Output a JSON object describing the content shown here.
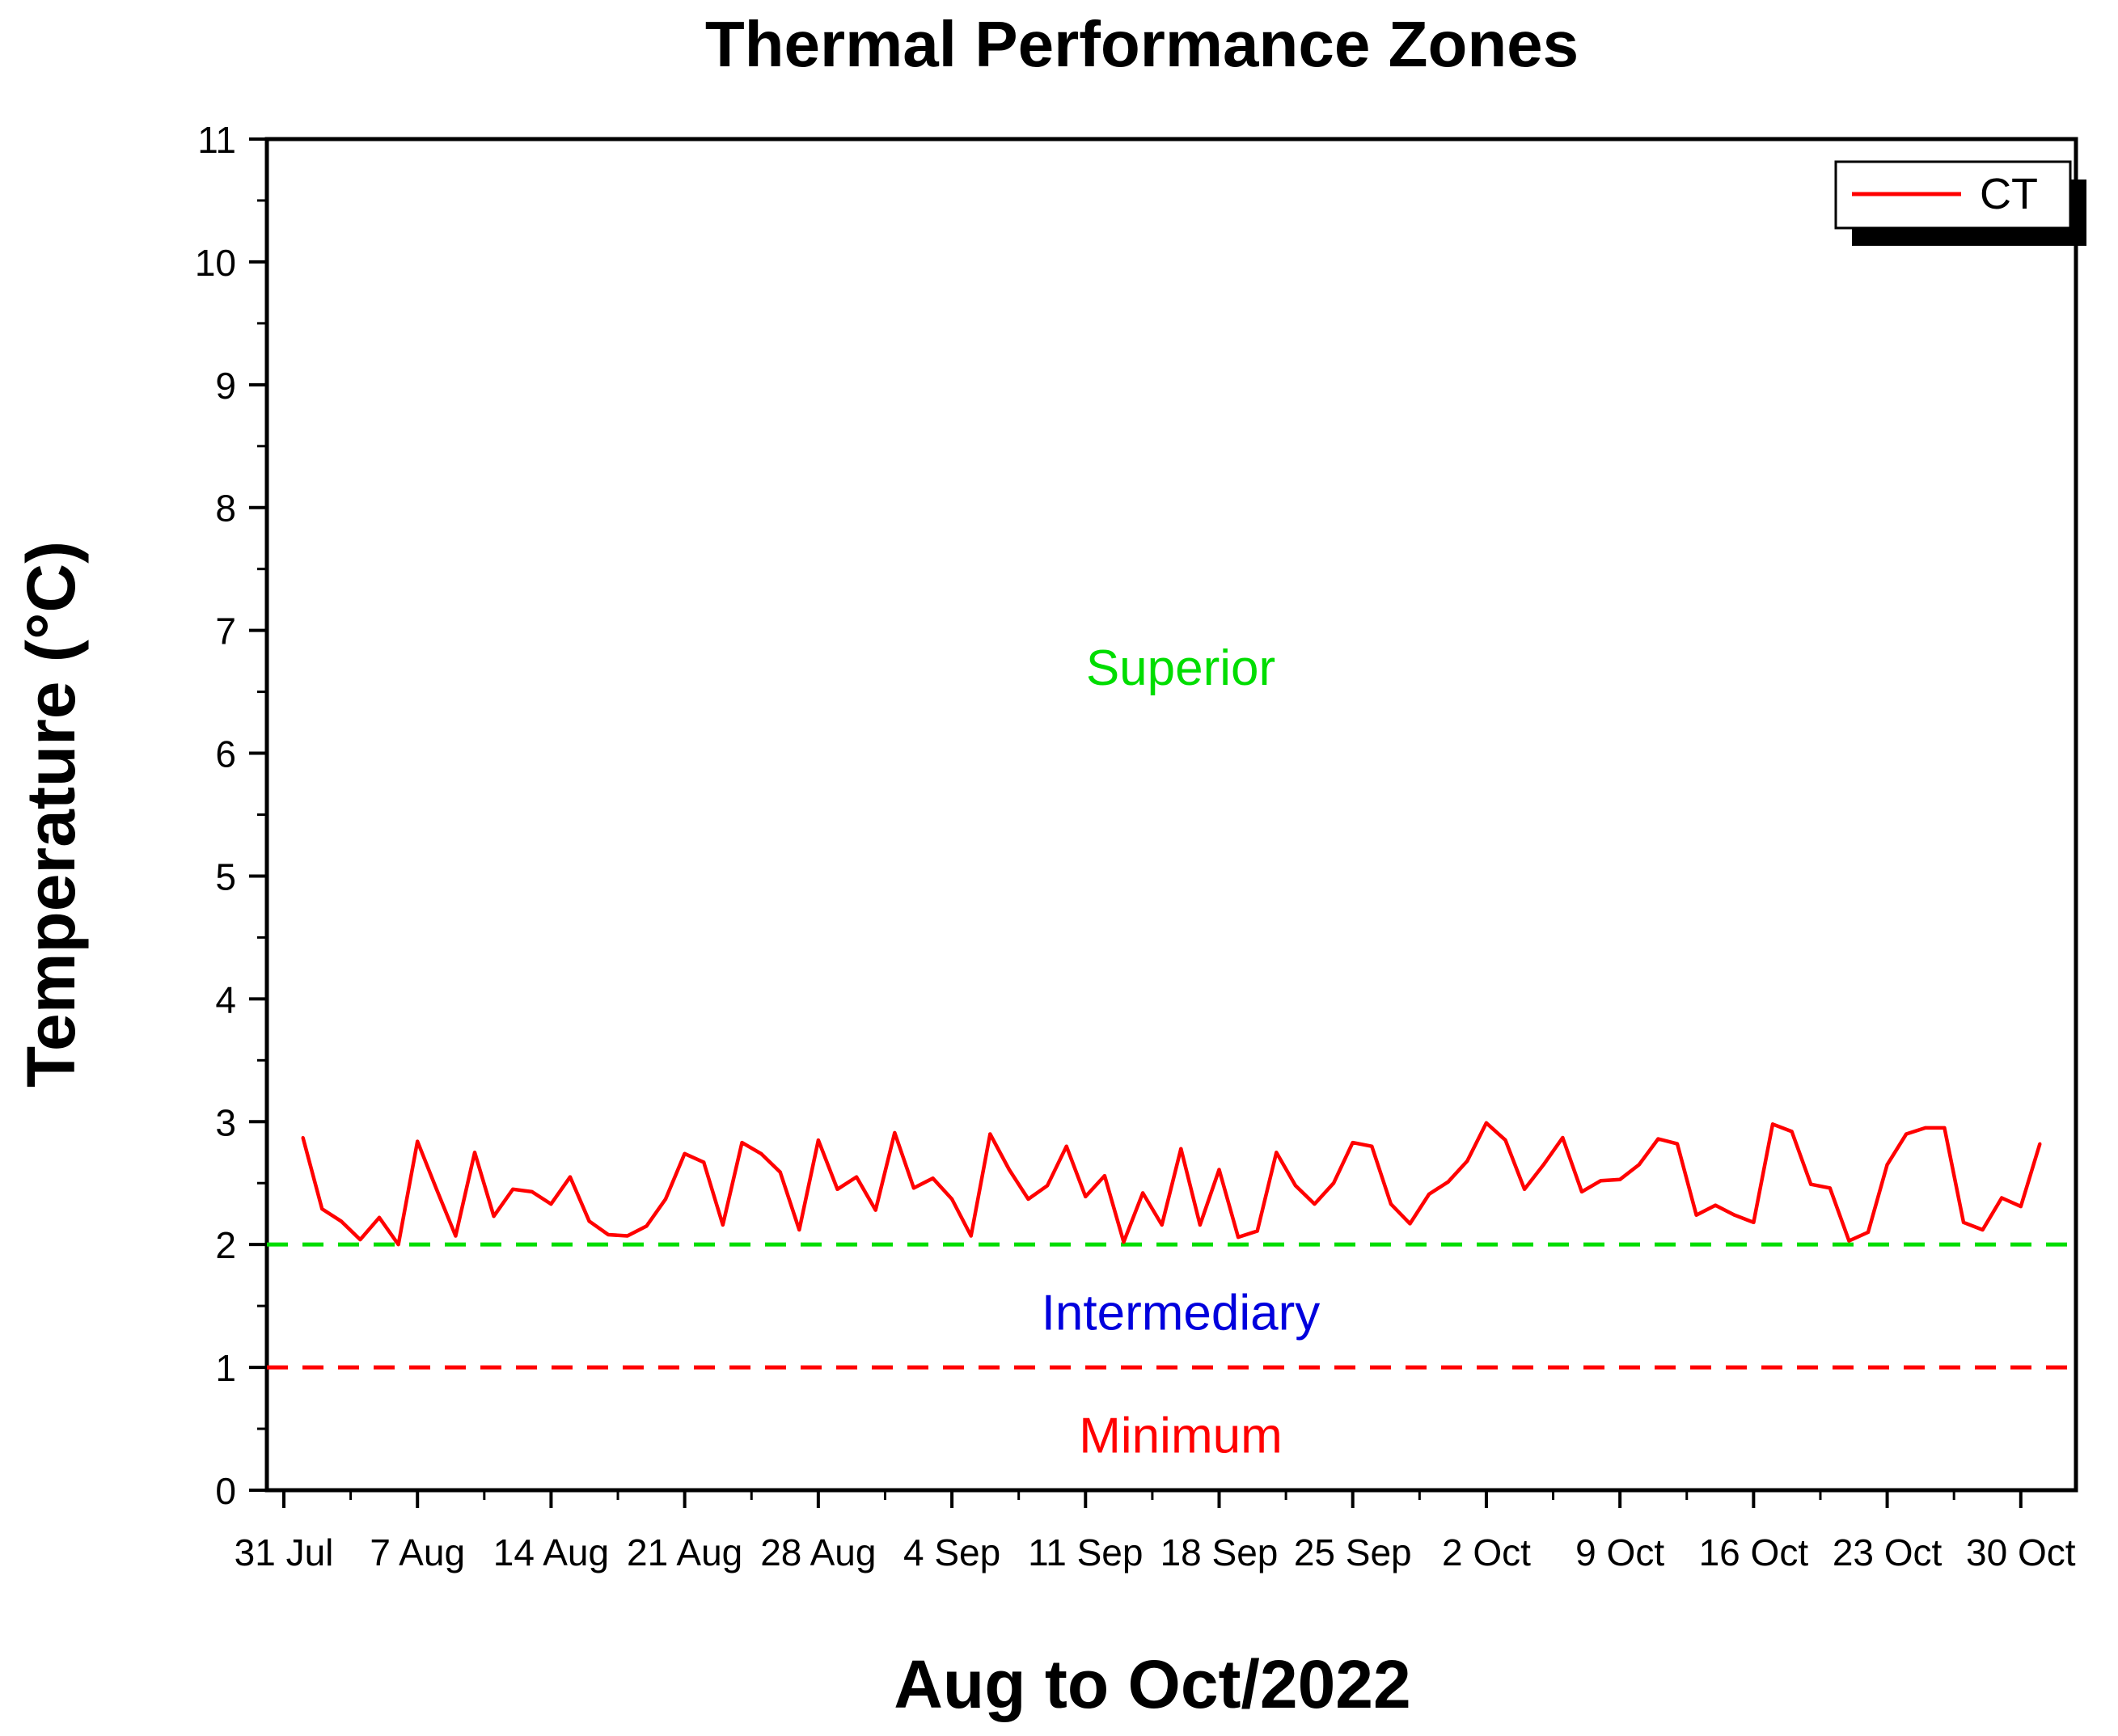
{
  "chart_data": {
    "type": "line",
    "title": "Thermal Performance Zones",
    "xlabel": "Aug to Oct/2022",
    "ylabel": "Temperature (°C)",
    "ylim": [
      0,
      11
    ],
    "yticks": [
      0,
      1,
      2,
      3,
      4,
      5,
      6,
      7,
      8,
      9,
      10,
      11
    ],
    "xlim": [
      0,
      93
    ],
    "xticks": [
      {
        "day": 0,
        "label": "31 Jul"
      },
      {
        "day": 7,
        "label": "7 Aug"
      },
      {
        "day": 14,
        "label": "14 Aug"
      },
      {
        "day": 21,
        "label": "21 Aug"
      },
      {
        "day": 28,
        "label": "28 Aug"
      },
      {
        "day": 35,
        "label": "4 Sep"
      },
      {
        "day": 42,
        "label": "11 Sep"
      },
      {
        "day": 49,
        "label": "18 Sep"
      },
      {
        "day": 56,
        "label": "25 Sep"
      },
      {
        "day": 63,
        "label": "2 Oct"
      },
      {
        "day": 70,
        "label": "9 Oct"
      },
      {
        "day": 77,
        "label": "16 Oct"
      },
      {
        "day": 84,
        "label": "23 Oct"
      },
      {
        "day": 91,
        "label": "30 Oct"
      }
    ],
    "series": [
      {
        "name": "CT",
        "color": "#ff0000",
        "x": [
          1,
          2,
          3,
          4,
          5,
          6,
          7,
          8,
          9,
          10,
          11,
          12,
          13,
          14,
          15,
          16,
          17,
          18,
          19,
          20,
          21,
          22,
          23,
          24,
          25,
          26,
          27,
          28,
          29,
          30,
          31,
          32,
          33,
          34,
          35,
          36,
          37,
          38,
          39,
          40,
          41,
          42,
          43,
          44,
          45,
          46,
          47,
          48,
          49,
          50,
          51,
          52,
          53,
          54,
          55,
          56,
          57,
          58,
          59,
          60,
          61,
          62,
          63,
          64,
          65,
          66,
          67,
          68,
          69,
          70,
          71,
          72,
          73,
          74,
          75,
          76,
          77,
          78,
          79,
          80,
          81,
          82,
          83,
          84,
          85,
          86,
          87,
          88,
          89,
          90,
          91,
          92
        ],
        "values": [
          2.87,
          2.29,
          2.19,
          2.04,
          2.22,
          2.0,
          2.84,
          2.45,
          2.07,
          2.75,
          2.23,
          2.45,
          2.43,
          2.33,
          2.55,
          2.19,
          2.08,
          2.07,
          2.15,
          2.37,
          2.74,
          2.67,
          2.16,
          2.83,
          2.74,
          2.59,
          2.12,
          2.85,
          2.45,
          2.55,
          2.28,
          2.91,
          2.46,
          2.54,
          2.37,
          2.07,
          2.9,
          2.61,
          2.37,
          2.48,
          2.8,
          2.39,
          2.56,
          2.02,
          2.42,
          2.16,
          2.78,
          2.16,
          2.61,
          2.06,
          2.11,
          2.75,
          2.48,
          2.33,
          2.5,
          2.83,
          2.8,
          2.33,
          2.17,
          2.41,
          2.51,
          2.68,
          2.99,
          2.85,
          2.45,
          2.65,
          2.87,
          2.43,
          2.52,
          2.53,
          2.65,
          2.86,
          2.82,
          2.24,
          2.32,
          2.24,
          2.18,
          2.98,
          2.92,
          2.49,
          2.46,
          2.03,
          2.1,
          2.65,
          2.9,
          2.95,
          2.95,
          2.18,
          2.12,
          2.38,
          2.31,
          2.82
        ]
      }
    ],
    "thresholds": [
      {
        "name": "superior-threshold",
        "value": 2,
        "color": "#00dd00",
        "style": "dashed"
      },
      {
        "name": "minimum-threshold",
        "value": 1,
        "color": "#ff0000",
        "style": "dashed"
      }
    ],
    "zones": [
      {
        "label": "Superior",
        "color": "#00dd00",
        "y": 6.7
      },
      {
        "label": "Intermediary",
        "color": "#0000dd",
        "y": 1.45
      },
      {
        "label": "Minimum",
        "color": "#ff0000",
        "y": 0.45
      }
    ],
    "legend": {
      "position": "top-right",
      "entries": [
        "CT"
      ]
    },
    "grid": false
  }
}
